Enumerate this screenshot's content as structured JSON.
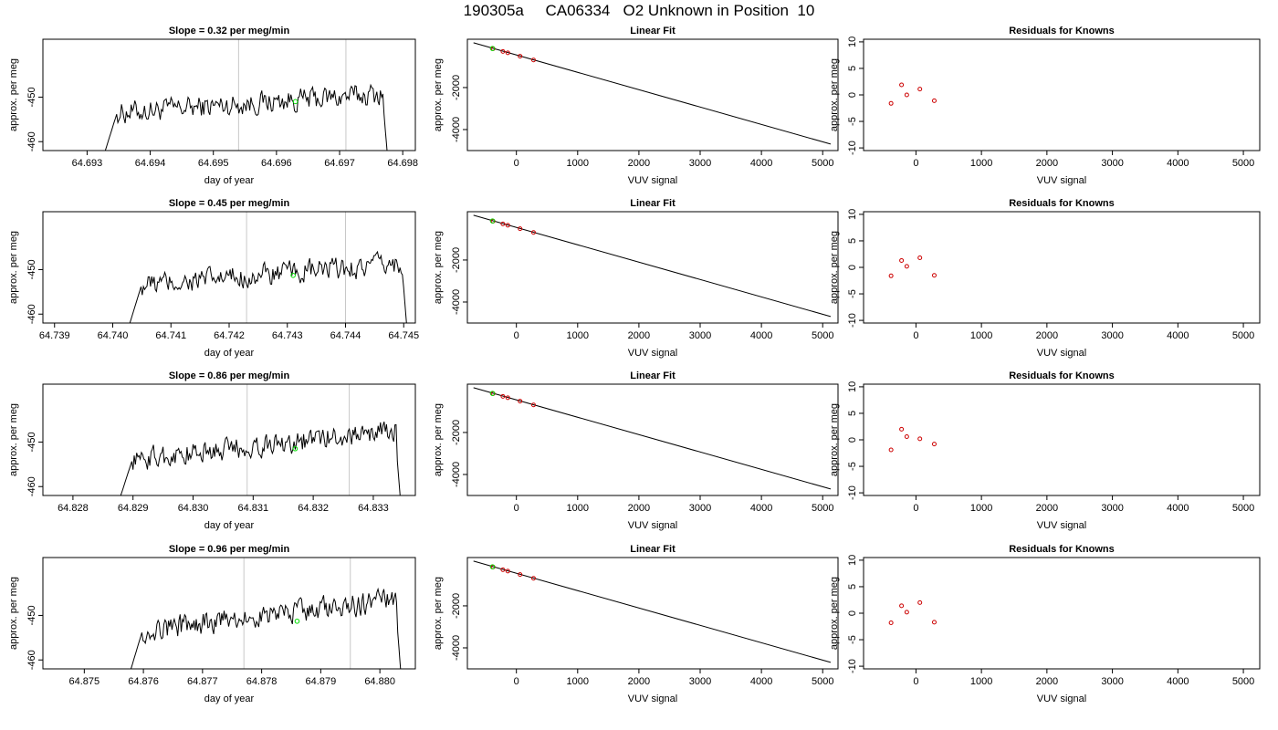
{
  "figure": {
    "title": "190305a     CA06334   O2 Unknown in Position  10"
  },
  "chart_data": [
    {
      "type": "line",
      "panel": "timeseries",
      "row": 1,
      "title": "Slope =  0.32  per meg/min",
      "xlabel": "day of year",
      "ylabel": "approx. per meg",
      "xlim": [
        64.6923,
        64.6982
      ],
      "ylim": [
        -462,
        -437
      ],
      "xticks": [
        64.693,
        64.694,
        64.695,
        64.696,
        64.697,
        64.698
      ],
      "xtick_labels": [
        "64.693",
        "64.694",
        "64.695",
        "64.696",
        "64.697",
        "64.698"
      ],
      "yticks": [
        -460,
        -450
      ],
      "ytick_labels": [
        "-460",
        "-450"
      ],
      "vlines": [
        64.6954,
        64.6971
      ],
      "signal": {
        "x_start": 64.6932,
        "x_end": 64.6978,
        "base": -451.5,
        "trend": 0.32
      },
      "marker": {
        "x": 64.6963,
        "y": -451,
        "color": "#00dd00"
      }
    },
    {
      "type": "line",
      "panel": "linear_fit",
      "row": 1,
      "title": "Linear Fit",
      "xlabel": "VUV signal",
      "ylabel": "approx. per meg",
      "xlim": [
        -800,
        5250
      ],
      "ylim": [
        -5000,
        300
      ],
      "xticks": [
        0,
        1000,
        2000,
        3000,
        4000,
        5000
      ],
      "xtick_labels": [
        "0",
        "1000",
        "2000",
        "3000",
        "4000",
        "5000"
      ],
      "yticks": [
        -4000,
        -2000
      ],
      "ytick_labels": [
        "-4000",
        "-2000"
      ],
      "line": {
        "x": [
          -700,
          5130
        ],
        "y": [
          130,
          -4690
        ]
      },
      "knowns": {
        "x": [
          -380,
          -220,
          -140,
          60,
          280
        ],
        "y": [
          -150,
          -280,
          -345,
          -510,
          -690
        ]
      },
      "unknown": {
        "x": -390,
        "y": -140
      }
    },
    {
      "type": "scatter",
      "panel": "residuals",
      "row": 1,
      "title": "Residuals for Knowns",
      "xlabel": "VUV signal",
      "ylabel": "approx. per meg",
      "xlim": [
        -800,
        5250
      ],
      "ylim": [
        -10.5,
        10.5
      ],
      "xticks": [
        0,
        1000,
        2000,
        3000,
        4000,
        5000
      ],
      "xtick_labels": [
        "0",
        "1000",
        "2000",
        "3000",
        "4000",
        "5000"
      ],
      "yticks": [
        -10,
        -5,
        0,
        5,
        10
      ],
      "ytick_labels": [
        "-10",
        "-5",
        "0",
        "5",
        "10"
      ],
      "points": {
        "x": [
          -380,
          -220,
          -140,
          60,
          280
        ],
        "y": [
          -1.6,
          1.9,
          0.0,
          1.1,
          -1.1
        ]
      }
    },
    {
      "type": "line",
      "panel": "timeseries",
      "row": 2,
      "title": "Slope =  0.45  per meg/min",
      "xlabel": "day of year",
      "ylabel": "approx. per meg",
      "xlim": [
        64.7388,
        64.7452
      ],
      "ylim": [
        -462,
        -437
      ],
      "xticks": [
        64.739,
        64.74,
        64.741,
        64.742,
        64.743,
        64.744,
        64.745
      ],
      "xtick_labels": [
        "64.739",
        "64.740",
        "64.741",
        "64.742",
        "64.743",
        "64.744",
        "64.745"
      ],
      "yticks": [
        -460,
        -450
      ],
      "ytick_labels": [
        "-460",
        "-450"
      ],
      "vlines": [
        64.7423,
        64.744
      ],
      "signal": {
        "x_start": 64.7402,
        "x_end": 64.7451,
        "base": -451.5,
        "trend": 0.45
      },
      "marker": {
        "x": 64.7431,
        "y": -451.3,
        "color": "#00dd00"
      }
    },
    {
      "type": "line",
      "panel": "linear_fit",
      "row": 2,
      "title": "Linear Fit",
      "xlabel": "VUV signal",
      "ylabel": "approx. per meg",
      "xlim": [
        -800,
        5250
      ],
      "ylim": [
        -5000,
        300
      ],
      "xticks": [
        0,
        1000,
        2000,
        3000,
        4000,
        5000
      ],
      "xtick_labels": [
        "0",
        "1000",
        "2000",
        "3000",
        "4000",
        "5000"
      ],
      "yticks": [
        -4000,
        -2000
      ],
      "ytick_labels": [
        "-4000",
        "-2000"
      ],
      "line": {
        "x": [
          -700,
          5130
        ],
        "y": [
          130,
          -4690
        ]
      },
      "knowns": {
        "x": [
          -380,
          -220,
          -140,
          60,
          280
        ],
        "y": [
          -150,
          -280,
          -345,
          -510,
          -690
        ]
      },
      "unknown": {
        "x": -390,
        "y": -140
      }
    },
    {
      "type": "scatter",
      "panel": "residuals",
      "row": 2,
      "title": "Residuals for Knowns",
      "xlabel": "VUV signal",
      "ylabel": "approx. per meg",
      "xlim": [
        -800,
        5250
      ],
      "ylim": [
        -10.5,
        10.5
      ],
      "xticks": [
        0,
        1000,
        2000,
        3000,
        4000,
        5000
      ],
      "xtick_labels": [
        "0",
        "1000",
        "2000",
        "3000",
        "4000",
        "5000"
      ],
      "yticks": [
        -10,
        -5,
        0,
        5,
        10
      ],
      "ytick_labels": [
        "-10",
        "-5",
        "0",
        "5",
        "10"
      ],
      "points": {
        "x": [
          -380,
          -220,
          -140,
          60,
          280
        ],
        "y": [
          -1.6,
          1.3,
          0.2,
          1.8,
          -1.5
        ]
      }
    },
    {
      "type": "line",
      "panel": "timeseries",
      "row": 3,
      "title": "Slope =  0.86  per meg/min",
      "xlabel": "day of year",
      "ylabel": "approx. per meg",
      "xlim": [
        64.8275,
        64.8337
      ],
      "ylim": [
        -462,
        -437
      ],
      "xticks": [
        64.828,
        64.829,
        64.83,
        64.831,
        64.832,
        64.833
      ],
      "xtick_labels": [
        "64.828",
        "64.829",
        "64.830",
        "64.831",
        "64.832",
        "64.833"
      ],
      "yticks": [
        -460,
        -450
      ],
      "ytick_labels": [
        "-460",
        "-450"
      ],
      "vlines": [
        64.8309,
        64.8326
      ],
      "signal": {
        "x_start": 64.8287,
        "x_end": 64.8335,
        "base": -452,
        "trend": 0.86
      },
      "marker": {
        "x": 64.8317,
        "y": -451.5,
        "color": "#00dd00"
      }
    },
    {
      "type": "line",
      "panel": "linear_fit",
      "row": 3,
      "title": "Linear Fit",
      "xlabel": "VUV signal",
      "ylabel": "approx. per meg",
      "xlim": [
        -800,
        5250
      ],
      "ylim": [
        -5000,
        300
      ],
      "xticks": [
        0,
        1000,
        2000,
        3000,
        4000,
        5000
      ],
      "xtick_labels": [
        "0",
        "1000",
        "2000",
        "3000",
        "4000",
        "5000"
      ],
      "yticks": [
        -4000,
        -2000
      ],
      "ytick_labels": [
        "-4000",
        "-2000"
      ],
      "line": {
        "x": [
          -700,
          5130
        ],
        "y": [
          130,
          -4690
        ]
      },
      "knowns": {
        "x": [
          -380,
          -220,
          -140,
          60,
          280
        ],
        "y": [
          -150,
          -280,
          -345,
          -510,
          -690
        ]
      },
      "unknown": {
        "x": -390,
        "y": -140
      }
    },
    {
      "type": "scatter",
      "panel": "residuals",
      "row": 3,
      "title": "Residuals for Knowns",
      "xlabel": "VUV signal",
      "ylabel": "approx. per meg",
      "xlim": [
        -800,
        5250
      ],
      "ylim": [
        -10.5,
        10.5
      ],
      "xticks": [
        0,
        1000,
        2000,
        3000,
        4000,
        5000
      ],
      "xtick_labels": [
        "0",
        "1000",
        "2000",
        "3000",
        "4000",
        "5000"
      ],
      "yticks": [
        -10,
        -5,
        0,
        5,
        10
      ],
      "ytick_labels": [
        "-10",
        "-5",
        "0",
        "5",
        "10"
      ],
      "points": {
        "x": [
          -380,
          -220,
          -140,
          60,
          280
        ],
        "y": [
          -1.9,
          2.0,
          0.6,
          0.2,
          -0.8
        ]
      }
    },
    {
      "type": "line",
      "panel": "timeseries",
      "row": 4,
      "title": "Slope =  0.96  per meg/min",
      "xlabel": "day of year",
      "ylabel": "approx. per meg",
      "xlim": [
        64.8743,
        64.8806
      ],
      "ylim": [
        -462,
        -437
      ],
      "xticks": [
        64.875,
        64.876,
        64.877,
        64.878,
        64.879,
        64.88
      ],
      "xtick_labels": [
        "64.875",
        "64.876",
        "64.877",
        "64.878",
        "64.879",
        "64.880"
      ],
      "yticks": [
        -460,
        -450
      ],
      "ytick_labels": [
        "-460",
        "-450"
      ],
      "vlines": [
        64.8777,
        64.8795
      ],
      "signal": {
        "x_start": 64.8757,
        "x_end": 64.8804,
        "base": -451.5,
        "trend": 0.96
      },
      "marker": {
        "x": 64.8786,
        "y": -451.3,
        "color": "#00dd00"
      }
    },
    {
      "type": "line",
      "panel": "linear_fit",
      "row": 4,
      "title": "Linear Fit",
      "xlabel": "VUV signal",
      "ylabel": "approx. per meg",
      "xlim": [
        -800,
        5250
      ],
      "ylim": [
        -5000,
        300
      ],
      "xticks": [
        0,
        1000,
        2000,
        3000,
        4000,
        5000
      ],
      "xtick_labels": [
        "0",
        "1000",
        "2000",
        "3000",
        "4000",
        "5000"
      ],
      "yticks": [
        -4000,
        -2000
      ],
      "ytick_labels": [
        "-4000",
        "-2000"
      ],
      "line": {
        "x": [
          -700,
          5130
        ],
        "y": [
          130,
          -4690
        ]
      },
      "knowns": {
        "x": [
          -380,
          -220,
          -140,
          60,
          280
        ],
        "y": [
          -150,
          -280,
          -345,
          -510,
          -690
        ]
      },
      "unknown": {
        "x": -390,
        "y": -140
      }
    },
    {
      "type": "scatter",
      "panel": "residuals",
      "row": 4,
      "title": "Residuals for Knowns",
      "xlabel": "VUV signal",
      "ylabel": "approx. per meg",
      "xlim": [
        -800,
        5250
      ],
      "ylim": [
        -10.5,
        10.5
      ],
      "xticks": [
        0,
        1000,
        2000,
        3000,
        4000,
        5000
      ],
      "xtick_labels": [
        "0",
        "1000",
        "2000",
        "3000",
        "4000",
        "5000"
      ],
      "yticks": [
        -10,
        -5,
        0,
        5,
        10
      ],
      "ytick_labels": [
        "-10",
        "-5",
        "0",
        "5",
        "10"
      ],
      "points": {
        "x": [
          -380,
          -220,
          -140,
          60,
          280
        ],
        "y": [
          -1.8,
          1.4,
          0.2,
          2.0,
          -1.7
        ]
      }
    }
  ]
}
